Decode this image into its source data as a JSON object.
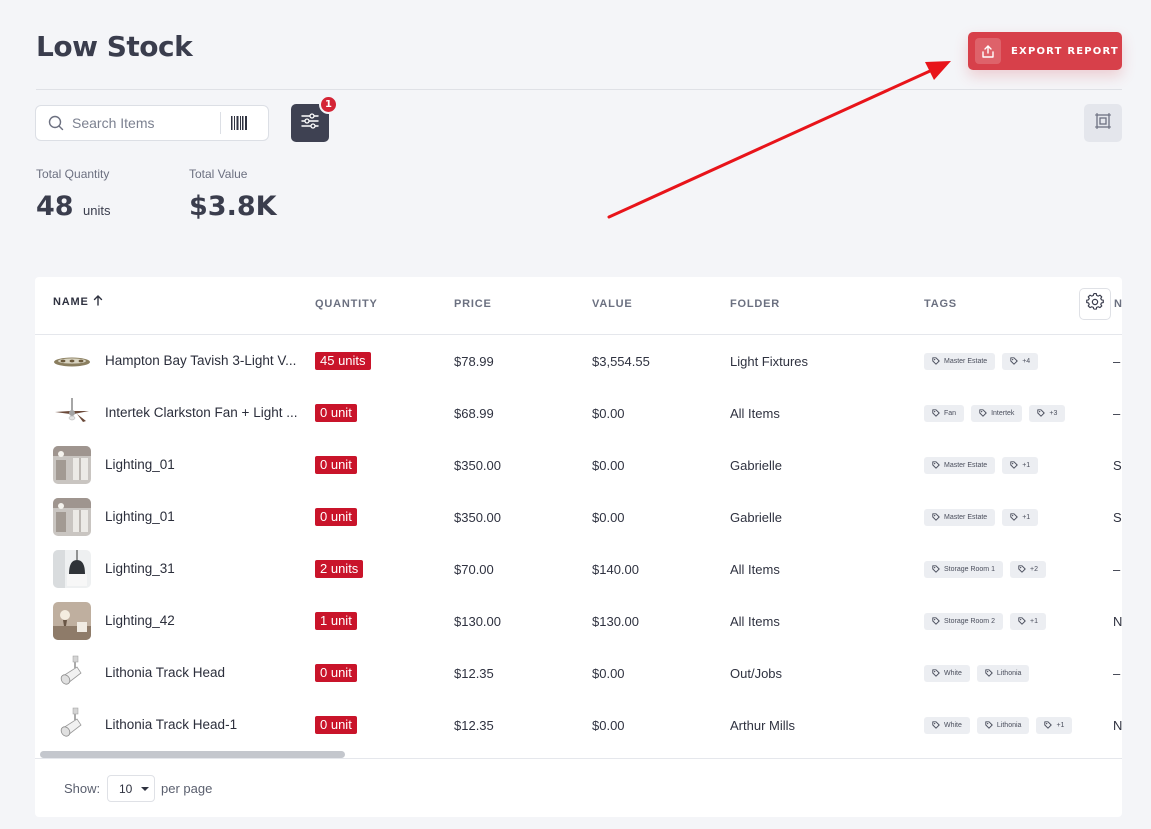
{
  "page": {
    "title": "Low Stock"
  },
  "export": {
    "label": "EXPORT REPORT"
  },
  "search": {
    "placeholder": "Search Items",
    "value": ""
  },
  "filter": {
    "badge_count": "1"
  },
  "stats": {
    "total_quantity_label": "Total Quantity",
    "total_quantity_value": "48",
    "total_quantity_unit": "units",
    "total_value_label": "Total Value",
    "total_value_value": "$3.8K"
  },
  "table": {
    "columns": {
      "name": "NAME",
      "quantity": "QUANTITY",
      "price": "PRICE",
      "value": "VALUE",
      "folder": "FOLDER",
      "tags": "TAGS",
      "cut": "N"
    },
    "sort": {
      "column": "name",
      "direction": "ascending",
      "icon": "arrow-up-icon"
    },
    "rows": [
      {
        "name": "Hampton Bay Tavish 3-Light V...",
        "quantity": "45 units",
        "price": "$78.99",
        "value": "$3,554.55",
        "folder": "Light Fixtures",
        "tags": [
          "Master Estate",
          "+4"
        ],
        "cut": "–",
        "thumb": "flush-light"
      },
      {
        "name": "Intertek Clarkston Fan + Light ...",
        "quantity": "0 unit",
        "price": "$68.99",
        "value": "$0.00",
        "folder": "All Items",
        "tags": [
          "Fan",
          "Intertek",
          "+3"
        ],
        "cut": "–",
        "thumb": "ceiling-fan"
      },
      {
        "name": "Lighting_01",
        "quantity": "0 unit",
        "price": "$350.00",
        "value": "$0.00",
        "folder": "Gabrielle",
        "tags": [
          "Master Estate",
          "+1"
        ],
        "cut": "S",
        "thumb": "room-photo"
      },
      {
        "name": "Lighting_01",
        "quantity": "0 unit",
        "price": "$350.00",
        "value": "$0.00",
        "folder": "Gabrielle",
        "tags": [
          "Master Estate",
          "+1"
        ],
        "cut": "S",
        "thumb": "room-photo"
      },
      {
        "name": "Lighting_31",
        "quantity": "2 units",
        "price": "$70.00",
        "value": "$140.00",
        "folder": "All Items",
        "tags": [
          "Storage Room 1",
          "+2"
        ],
        "cut": "–",
        "thumb": "pendant-photo"
      },
      {
        "name": "Lighting_42",
        "quantity": "1 unit",
        "price": "$130.00",
        "value": "$130.00",
        "folder": "All Items",
        "tags": [
          "Storage Room 2",
          "+1"
        ],
        "cut": "N",
        "thumb": "sconce-photo"
      },
      {
        "name": "Lithonia Track Head",
        "quantity": "0 unit",
        "price": "$12.35",
        "value": "$0.00",
        "folder": "Out/Jobs",
        "tags": [
          "White",
          "Lithonia"
        ],
        "cut": "–",
        "thumb": "track-head"
      },
      {
        "name": "Lithonia Track Head-1",
        "quantity": "0 unit",
        "price": "$12.35",
        "value": "$0.00",
        "folder": "Arthur Mills",
        "tags": [
          "White",
          "Lithonia",
          "+1"
        ],
        "cut": "N",
        "thumb": "track-head"
      }
    ]
  },
  "pagination": {
    "show_label": "Show:",
    "per_page_value": "10",
    "per_page_label": "per page"
  },
  "colors": {
    "accent": "#d7404a",
    "badge_red": "#c9142a",
    "dark_button": "#3e4152",
    "annotation_arrow": "#e8141a"
  },
  "icons": {
    "export": "upload-icon",
    "search": "search-icon",
    "barcode": "barcode-icon",
    "filter": "sliders-icon",
    "view": "frame-icon",
    "settings": "gear-icon",
    "tag": "tag-icon"
  }
}
